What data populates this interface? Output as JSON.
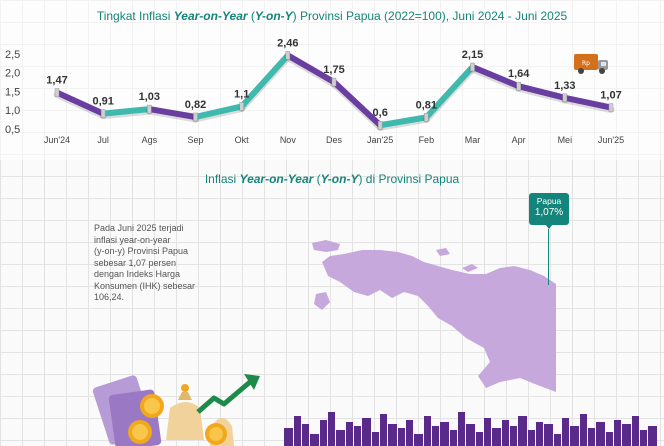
{
  "header": {
    "title_prefix": "Tingkat Inflasi ",
    "title_italic": "Year-on-Year",
    "title_mid": " (",
    "title_italic2": "Y-on-Y",
    "title_suffix": ") Provinsi Papua (2022=100), Juni 2024 - Juni 2025"
  },
  "chart_data": {
    "type": "line",
    "title": "Tingkat Inflasi Year-on-Year (Y-on-Y) Provinsi Papua (2022=100), Juni 2024 - Juni 2025",
    "categories": [
      "Jun'24",
      "Jul",
      "Ags",
      "Sep",
      "Okt",
      "Nov",
      "Des",
      "Jan'25",
      "Feb",
      "Mar",
      "Apr",
      "Mei",
      "Jun'25"
    ],
    "values": [
      1.47,
      0.91,
      1.03,
      0.82,
      1.1,
      2.46,
      1.75,
      0.6,
      0.81,
      2.15,
      1.64,
      1.33,
      1.07
    ],
    "value_labels": [
      "1,47",
      "0,91",
      "1,03",
      "0,82",
      "1,1",
      "2,46",
      "1,75",
      "0,6",
      "0,81",
      "2,15",
      "1,64",
      "1,33",
      "1,07"
    ],
    "yticks": [
      "0,5",
      "1,0",
      "1,5",
      "2,0",
      "2,5"
    ],
    "ytick_values": [
      0.5,
      1.0,
      1.5,
      2.0,
      2.5
    ],
    "ylim": [
      0.5,
      2.55
    ],
    "xlabel": "",
    "ylabel": "",
    "grid": false,
    "segment_colors": {
      "rising": "#3fb9ad",
      "falling": "#6a3ea1"
    }
  },
  "map_section": {
    "title_prefix": "Inflasi ",
    "title_italic": "Year-on-Year",
    "title_mid": " (",
    "title_italic2": "Y-on-Y",
    "title_suffix": ") di Provinsi Papua",
    "description": "Pada Juni 2025 terjadi\ninflasi year-on-year\n(y-on-y) Provinsi Papua\nsebesar 1,07 persen\ndengan Indeks Harga\nKonsumen (IHK) sebesar\n106,24.",
    "callout_name": "Papua",
    "callout_value": "1,07%",
    "map_color": "#c6a8dc",
    "accent": "#14857a"
  },
  "icons": {
    "truck": "delivery-truck-icon",
    "money": "money-coins-icon",
    "arrow": "growth-arrow-icon",
    "skyline": "city-skyline-icon"
  }
}
